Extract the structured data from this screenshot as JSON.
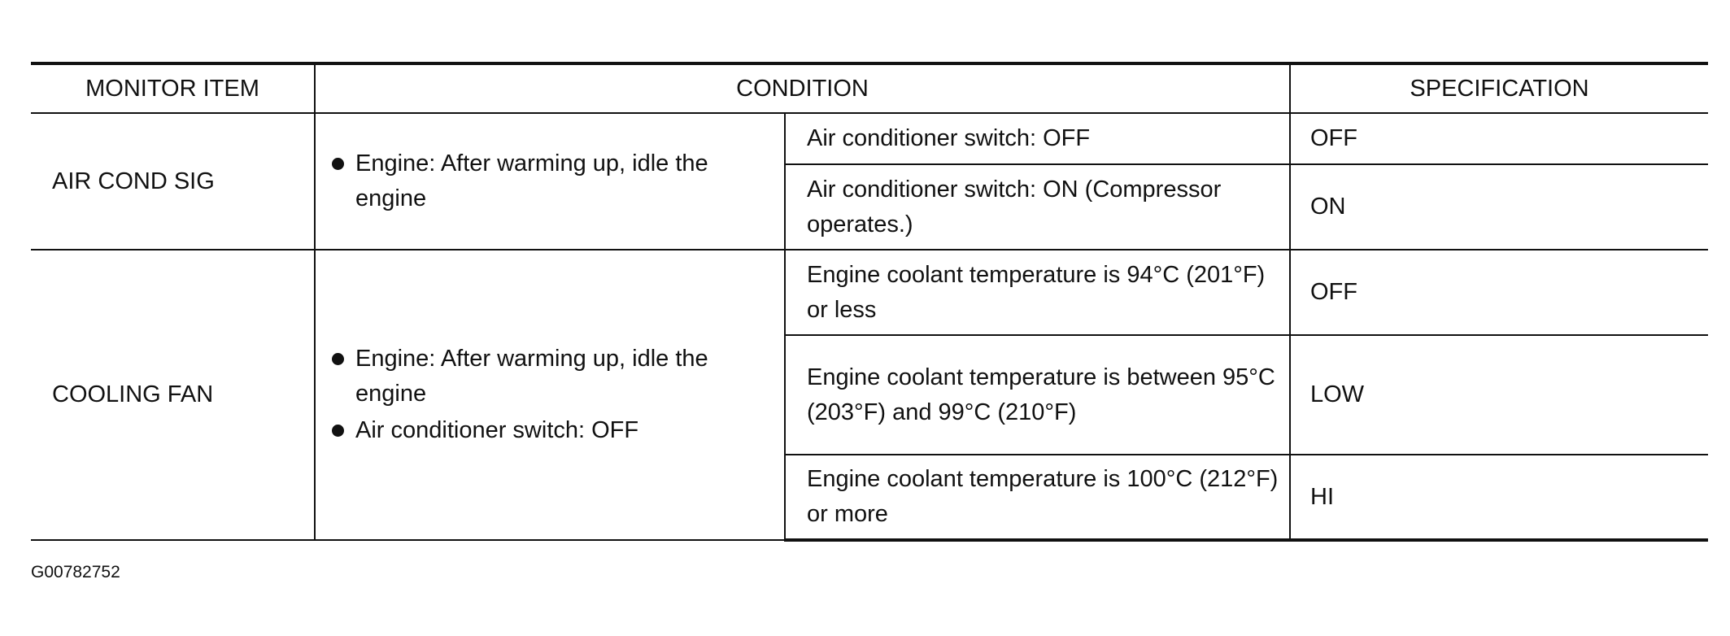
{
  "table": {
    "headers": [
      "MONITOR ITEM",
      "CONDITION",
      "SPECIFICATION"
    ],
    "groups": [
      {
        "item": "AIR COND SIG",
        "conditions": [
          "Engine: After warming up, idle the engine"
        ],
        "rows": [
          {
            "condition": "Air conditioner switch: OFF",
            "spec": "OFF"
          },
          {
            "condition": "Air conditioner switch: ON (Compressor operates.)",
            "spec": "ON"
          }
        ]
      },
      {
        "item": "COOLING FAN",
        "conditions": [
          "Engine: After warming up, idle the engine",
          "Air conditioner switch: OFF"
        ],
        "rows": [
          {
            "condition": "Engine coolant temperature is 94°C (201°F) or less",
            "spec": "OFF"
          },
          {
            "condition": "Engine coolant temperature is between 95°C (203°F) and 99°C (210°F)",
            "spec": "LOW"
          },
          {
            "condition": "Engine coolant temperature is 100°C (212°F) or more",
            "spec": "HI"
          }
        ]
      }
    ]
  },
  "footer": {
    "code": "G00782752"
  }
}
